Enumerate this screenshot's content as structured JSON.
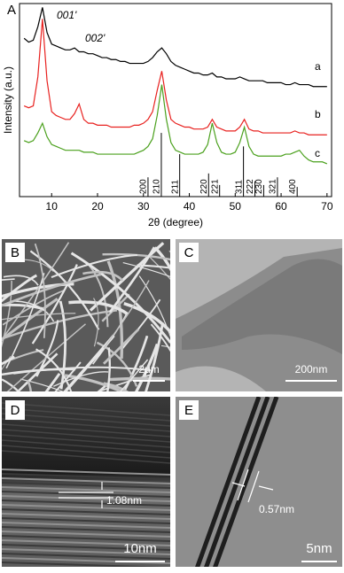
{
  "chart_data": {
    "type": "line",
    "panel_label": "A",
    "x_label": "2θ (degree)",
    "y_label": "Intensity (a.u.)",
    "xlim": [
      3,
      71
    ],
    "ylim": [
      0,
      100
    ],
    "xticks": [
      10,
      20,
      30,
      40,
      50,
      60,
      70
    ],
    "x": [
      4,
      5,
      6,
      7,
      8,
      9,
      10,
      11,
      12,
      13,
      14,
      15,
      16,
      17,
      18,
      19,
      20,
      21,
      22,
      23,
      24,
      25,
      26,
      27,
      28,
      29,
      30,
      31,
      32,
      33,
      34,
      35,
      36,
      37,
      38,
      39,
      40,
      41,
      42,
      43,
      44,
      45,
      46,
      47,
      48,
      49,
      50,
      51,
      52,
      53,
      54,
      55,
      56,
      57,
      58,
      59,
      60,
      61,
      62,
      63,
      64,
      65,
      66,
      67,
      68,
      69,
      70
    ],
    "series": [
      {
        "name": "a",
        "color": "#000000",
        "values": [
          82,
          80,
          81,
          88,
          98,
          85,
          79,
          78,
          77,
          76,
          76,
          77,
          75,
          75,
          74,
          74,
          73,
          72,
          72,
          71,
          71,
          70,
          70,
          69,
          69,
          69,
          69,
          70,
          72,
          75,
          77,
          74,
          70,
          68,
          67,
          66,
          65,
          64,
          64,
          63,
          63,
          64,
          62,
          62,
          61,
          61,
          61,
          62,
          61,
          60,
          60,
          60,
          60,
          59,
          59,
          59,
          59,
          58,
          58,
          59,
          58,
          58,
          58,
          57,
          57,
          57,
          57
        ]
      },
      {
        "name": "b",
        "color": "#e8211f",
        "values": [
          47,
          46,
          47,
          62,
          92,
          60,
          44,
          42,
          41,
          40,
          40,
          43,
          48,
          40,
          38,
          38,
          37,
          37,
          37,
          36,
          36,
          36,
          36,
          36,
          37,
          37,
          38,
          40,
          44,
          55,
          65,
          50,
          40,
          38,
          37,
          36,
          36,
          35,
          35,
          35,
          36,
          40,
          36,
          35,
          34,
          34,
          34,
          36,
          40,
          35,
          34,
          34,
          33,
          33,
          33,
          33,
          33,
          33,
          33,
          34,
          33,
          33,
          32,
          32,
          32,
          32,
          32
        ]
      },
      {
        "name": "c",
        "color": "#4aa01c",
        "values": [
          29,
          28,
          29,
          33,
          38,
          31,
          27,
          26,
          25,
          24,
          24,
          24,
          24,
          23,
          23,
          23,
          22,
          22,
          22,
          22,
          22,
          22,
          22,
          22,
          22,
          23,
          24,
          26,
          30,
          42,
          58,
          40,
          28,
          24,
          23,
          22,
          22,
          22,
          22,
          23,
          27,
          38,
          28,
          23,
          22,
          22,
          23,
          28,
          36,
          26,
          22,
          21,
          21,
          21,
          21,
          21,
          21,
          22,
          22,
          23,
          24,
          21,
          19,
          18,
          18,
          18,
          17
        ]
      }
    ],
    "annotations": [
      "001'",
      "002'"
    ],
    "references": {
      "labels": [
        "200",
        "210",
        "211",
        "220",
        "221",
        "311",
        "222",
        "230",
        "321",
        "400"
      ],
      "x": [
        31.0,
        33.9,
        37.9,
        44.2,
        46.6,
        51.8,
        54.3,
        56.2,
        59.2,
        63.5
      ],
      "heights": [
        10,
        33,
        22,
        12,
        6,
        26,
        8,
        6,
        10,
        5
      ]
    }
  },
  "panels": [
    {
      "label": "B",
      "scale": "2μm"
    },
    {
      "label": "C",
      "scale": "200nm"
    },
    {
      "label": "D",
      "scale": "10nm",
      "annotation": "1.08nm"
    },
    {
      "label": "E",
      "scale": "5nm",
      "annotation": "0.57nm"
    }
  ]
}
